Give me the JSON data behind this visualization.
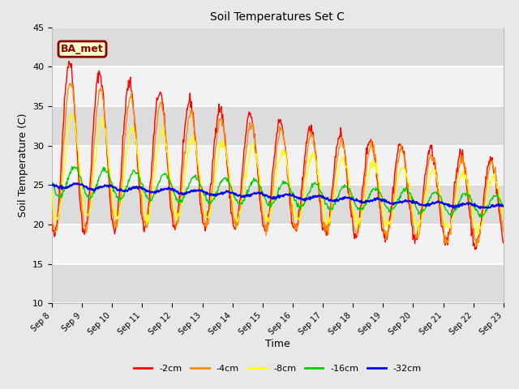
{
  "title": "Soil Temperatures Set C",
  "xlabel": "Time",
  "ylabel": "Soil Temperature (C)",
  "ylim": [
    10,
    45
  ],
  "xlim_days": 15,
  "legend_label": "BA_met",
  "line_colors": {
    "-2cm": "#FF0000",
    "-4cm": "#FF8C00",
    "-8cm": "#FFFF00",
    "-16cm": "#00CC00",
    "-32cm": "#0000EE"
  },
  "legend_order": [
    "-2cm",
    "-4cm",
    "-8cm",
    "-16cm",
    "-32cm"
  ],
  "background_color": "#E8E8E8",
  "plot_bg_color": "#F2F2F2",
  "band_colors": [
    "#DCDCDC",
    "#F2F2F2"
  ],
  "grid_color": "#FFFFFF",
  "annotation_box_facecolor": "#FFFFCC",
  "annotation_box_edgecolor": "#8B0000",
  "annotation_text_color": "#8B0000",
  "tick_labels": [
    "Sep 8",
    "Sep 9",
    "Sep 10",
    "Sep 11",
    "Sep 12",
    "Sep 13",
    "Sep 14",
    "Sep 15",
    "Sep 16",
    "Sep 17",
    "Sep 18",
    "Sep 19",
    "Sep 20",
    "Sep 21",
    "Sep 22",
    "Sep 23"
  ],
  "n_days": 15,
  "n_points_per_day": 48
}
